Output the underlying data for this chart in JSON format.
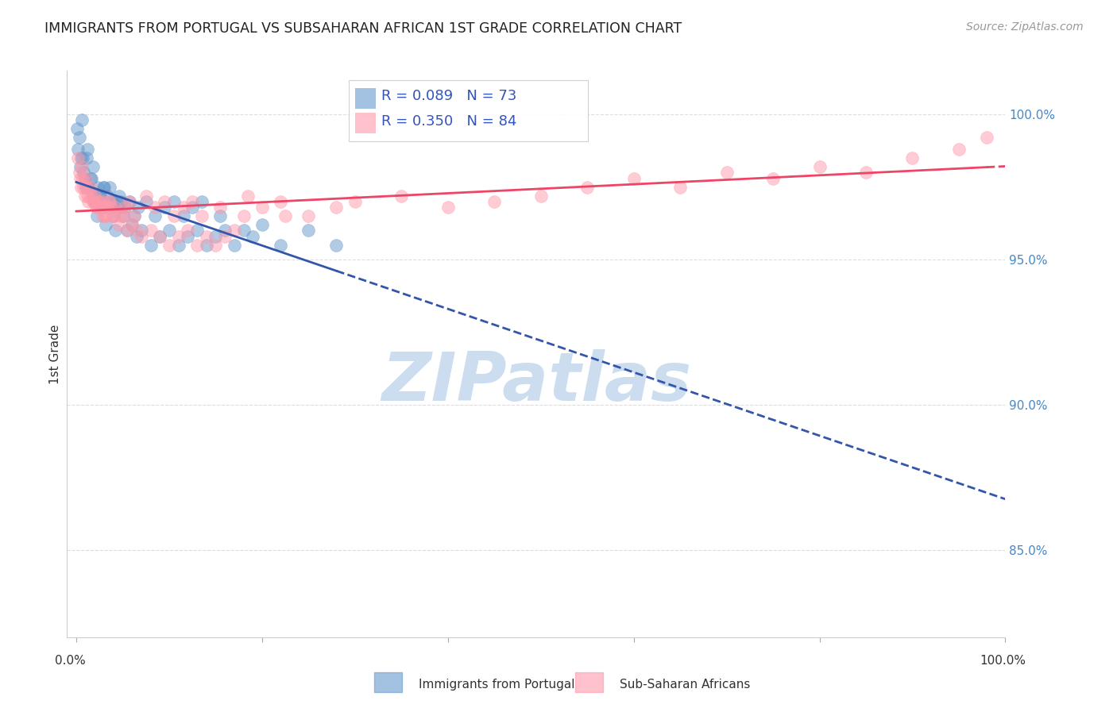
{
  "title": "IMMIGRANTS FROM PORTUGAL VS SUBSAHARAN AFRICAN 1ST GRADE CORRELATION CHART",
  "source": "Source: ZipAtlas.com",
  "ylabel": "1st Grade",
  "right_yticks": [
    100.0,
    95.0,
    90.0,
    85.0
  ],
  "right_ytick_labels": [
    "100.0%",
    "95.0%",
    "90.0%",
    "85.0%"
  ],
  "legend_label_blue": "Immigrants from Portugal",
  "legend_label_pink": "Sub-Saharan Africans",
  "R_blue": 0.089,
  "N_blue": 73,
  "R_pink": 0.35,
  "N_pink": 84,
  "blue_color": "#6699CC",
  "pink_color": "#FF99AA",
  "blue_line_color": "#3355AA",
  "pink_line_color": "#EE4466",
  "watermark": "ZIPatlas",
  "watermark_color": "#CCDDF0",
  "bg_color": "#FFFFFF",
  "grid_color": "#DDDDDD",
  "blue_scatter_x": [
    0.3,
    0.5,
    0.6,
    0.8,
    1.0,
    1.2,
    1.5,
    1.8,
    2.0,
    2.2,
    2.5,
    2.8,
    3.0,
    3.2,
    3.5,
    3.8,
    4.0,
    4.2,
    4.5,
    5.0,
    5.5,
    6.0,
    6.5,
    7.0,
    8.0,
    9.0,
    10.0,
    11.0,
    12.0,
    13.0,
    14.0,
    15.0,
    16.0,
    17.0,
    18.0,
    19.0,
    20.0,
    22.0,
    25.0,
    28.0,
    0.1,
    0.2,
    0.4,
    0.7,
    0.9,
    1.1,
    1.3,
    1.6,
    1.9,
    2.1,
    2.3,
    2.6,
    2.9,
    3.1,
    3.3,
    3.6,
    3.9,
    4.1,
    4.3,
    4.6,
    4.8,
    5.2,
    5.7,
    6.2,
    6.7,
    7.5,
    8.5,
    9.5,
    10.5,
    11.5,
    12.5,
    13.5,
    15.5
  ],
  "blue_scatter_y": [
    99.2,
    98.5,
    99.8,
    98.0,
    97.5,
    98.8,
    97.8,
    98.2,
    97.0,
    96.5,
    97.2,
    96.8,
    97.5,
    96.2,
    96.8,
    97.0,
    96.5,
    96.0,
    96.8,
    96.5,
    96.0,
    96.2,
    95.8,
    96.0,
    95.5,
    95.8,
    96.0,
    95.5,
    95.8,
    96.0,
    95.5,
    95.8,
    96.0,
    95.5,
    96.0,
    95.8,
    96.2,
    95.5,
    96.0,
    95.5,
    99.5,
    98.8,
    98.2,
    98.5,
    97.8,
    98.5,
    97.5,
    97.8,
    97.2,
    97.0,
    97.5,
    97.2,
    97.5,
    97.0,
    97.2,
    97.5,
    97.0,
    96.8,
    97.0,
    97.2,
    97.0,
    96.8,
    97.0,
    96.5,
    96.8,
    97.0,
    96.5,
    96.8,
    97.0,
    96.5,
    96.8,
    97.0,
    96.5
  ],
  "pink_scatter_x": [
    0.2,
    0.4,
    0.6,
    0.8,
    1.0,
    1.2,
    1.5,
    1.8,
    2.0,
    2.2,
    2.5,
    2.8,
    3.0,
    3.2,
    3.5,
    3.8,
    4.0,
    4.5,
    5.0,
    5.5,
    6.0,
    6.5,
    7.0,
    8.0,
    9.0,
    10.0,
    11.0,
    12.0,
    13.0,
    14.0,
    15.0,
    16.0,
    17.0,
    18.0,
    20.0,
    22.0,
    25.0,
    28.0,
    30.0,
    35.0,
    40.0,
    45.0,
    50.0,
    55.0,
    60.0,
    65.0,
    70.0,
    75.0,
    80.0,
    85.0,
    90.0,
    95.0,
    98.0,
    0.3,
    0.5,
    0.7,
    0.9,
    1.1,
    1.3,
    1.6,
    1.9,
    2.1,
    2.3,
    2.6,
    2.9,
    3.1,
    3.3,
    3.6,
    3.9,
    4.2,
    4.8,
    5.2,
    5.7,
    6.2,
    7.5,
    8.5,
    9.5,
    10.5,
    11.5,
    12.5,
    13.5,
    15.5,
    18.5,
    22.5
  ],
  "pink_scatter_y": [
    98.5,
    97.8,
    98.2,
    97.5,
    97.8,
    97.2,
    97.5,
    97.0,
    97.2,
    96.8,
    97.0,
    96.5,
    96.8,
    96.5,
    97.0,
    96.8,
    96.5,
    96.2,
    96.5,
    96.0,
    96.2,
    96.0,
    95.8,
    96.0,
    95.8,
    95.5,
    95.8,
    96.0,
    95.5,
    95.8,
    95.5,
    95.8,
    96.0,
    96.5,
    96.8,
    97.0,
    96.5,
    96.8,
    97.0,
    97.2,
    96.8,
    97.0,
    97.2,
    97.5,
    97.8,
    97.5,
    98.0,
    97.8,
    98.2,
    98.0,
    98.5,
    98.8,
    99.2,
    98.0,
    97.5,
    97.8,
    97.2,
    97.5,
    97.0,
    97.2,
    97.0,
    96.8,
    97.0,
    96.8,
    97.0,
    96.5,
    96.8,
    97.0,
    96.5,
    96.8,
    96.5,
    96.8,
    97.0,
    96.5,
    97.2,
    96.8,
    97.0,
    96.5,
    96.8,
    97.0,
    96.5,
    96.8,
    97.2,
    96.5
  ],
  "ymin": 82.0,
  "ymax": 101.5,
  "xmin": -1.0,
  "xmax": 100.0
}
